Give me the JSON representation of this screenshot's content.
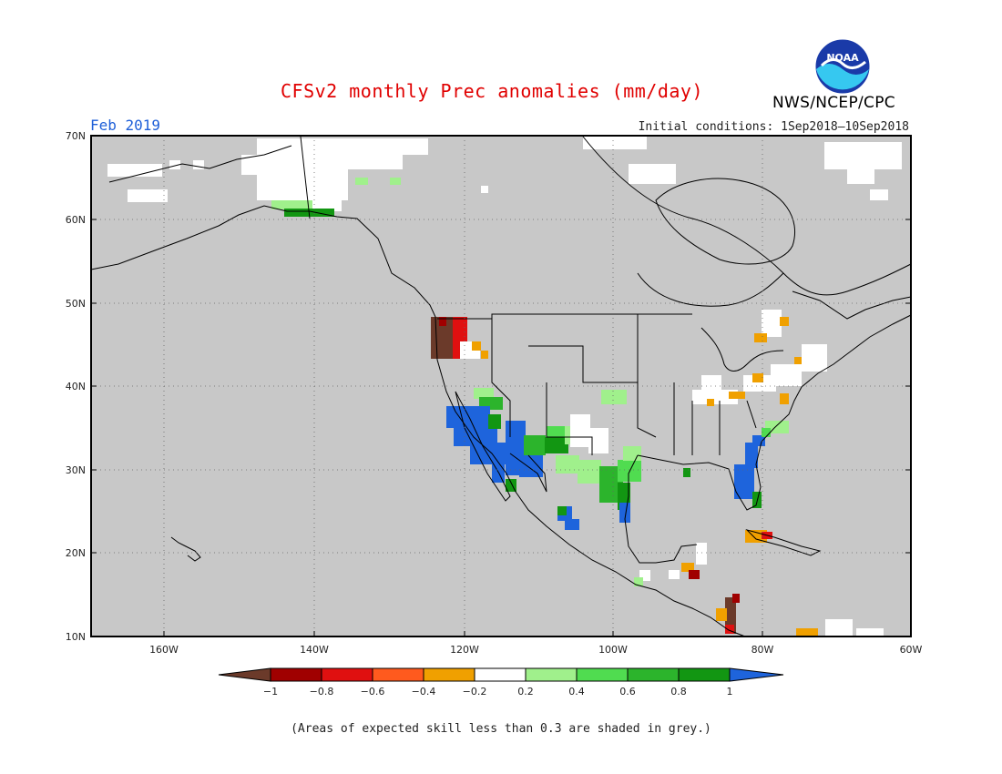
{
  "title": "CFSv2 monthly Prec anomalies (mm/day)",
  "month_label": "Feb 2019",
  "initial_conditions": "Initial conditions: 1Sep2018—10Sep2018",
  "agency": "NWS/NCEP/CPC",
  "logo_text": "NOAA",
  "footnote": "(Areas of expected skill less than 0.3 are shaded in grey.)",
  "map": {
    "background_color": "#c8c8c8",
    "lon_range": [
      -170,
      -60
    ],
    "lat_range": [
      10,
      70
    ],
    "lat_labels": [
      "70N",
      "60N",
      "50N",
      "40N",
      "30N",
      "20N",
      "10N"
    ],
    "lon_labels": [
      "160W",
      "140W",
      "120W",
      "100W",
      "80W",
      "60W"
    ]
  },
  "colorbar": {
    "labels": [
      "−1",
      "−0.8",
      "−0.6",
      "−0.4",
      "−0.2",
      "0.2",
      "0.4",
      "0.6",
      "0.8",
      "1"
    ],
    "colors": [
      "#6b3a2a",
      "#a00000",
      "#e01010",
      "#ff5a1e",
      "#f0a000",
      "#ffffff",
      "#a0f08c",
      "#50dc50",
      "#2cb42c",
      "#129612",
      "#1e64dc"
    ]
  }
}
